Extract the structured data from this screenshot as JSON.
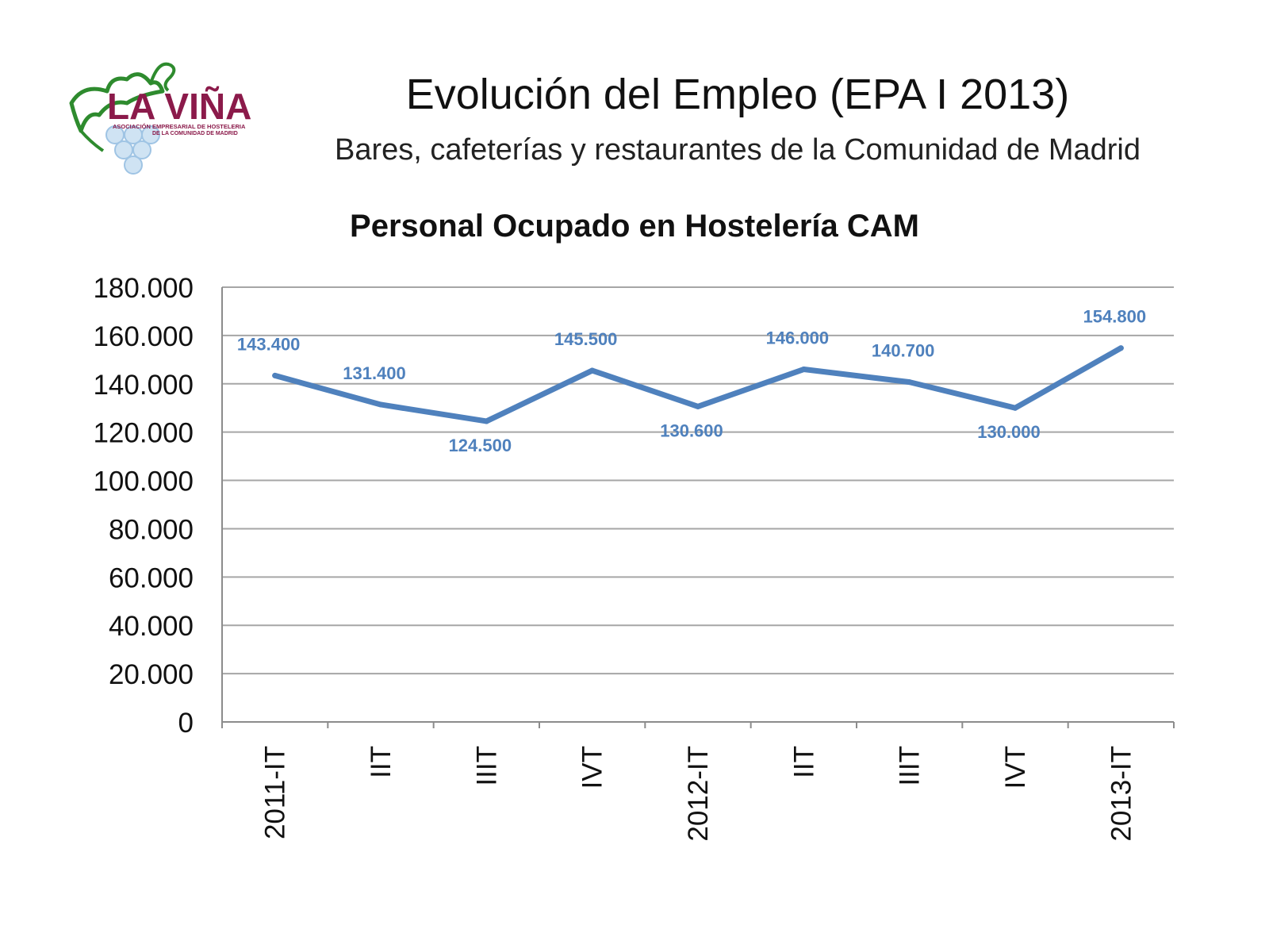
{
  "header": {
    "title": "Evolución del Empleo (EPA I 2013)",
    "subtitle": "Bares, cafeterías y restaurantes de la Comunidad de Madrid"
  },
  "logo": {
    "name": "LA VIÑA",
    "line1": "ASOCIACIÓN EMPRESARIAL DE HOSTELERIA",
    "line2": "DE LA COMUNIDAD DE MADRID"
  },
  "colors": {
    "series": "#4f81bd",
    "label": "#4f81bd",
    "grid": "#a6a6a6",
    "logo_text": "#8b1a4a",
    "logo_vine": "#2e8b2e"
  },
  "chart_data": {
    "type": "line",
    "title": "Personal Ocupado en Hostelería CAM",
    "categories": [
      "2011-IT",
      "IIT",
      "IIIT",
      "IVT",
      "2012-IT",
      "IIT",
      "IIIT",
      "IVT",
      "2013-IT"
    ],
    "series": [
      {
        "values": [
          143400,
          131400,
          124500,
          145500,
          130600,
          146000,
          140700,
          130000,
          154800
        ],
        "labels": [
          "143.400",
          "131.400",
          "124.500",
          "145.500",
          "130.600",
          "146.000",
          "140.700",
          "130.000",
          "154.800"
        ],
        "label_positions": [
          "above",
          "above",
          "below",
          "above",
          "below",
          "above",
          "above",
          "below",
          "above"
        ]
      }
    ],
    "y_ticks": [
      "0",
      "20.000",
      "40.000",
      "60.000",
      "80.000",
      "100.000",
      "120.000",
      "140.000",
      "160.000",
      "180.000"
    ],
    "ylim": [
      0,
      180000
    ],
    "ystep": 20000,
    "xlabel": "",
    "ylabel": "",
    "grid": true,
    "legend": "none"
  }
}
